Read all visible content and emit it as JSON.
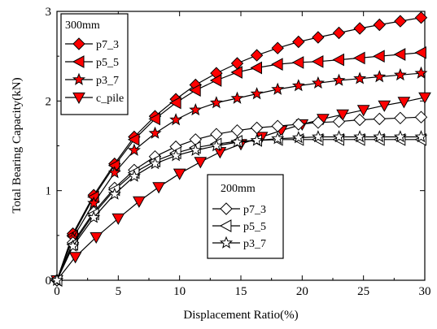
{
  "chart_data": {
    "type": "line",
    "xlabel": "Displacement Ratio(%)",
    "ylabel": "Total Bearing Capacity(kN)",
    "xlim": [
      0,
      30
    ],
    "ylim": [
      0,
      3
    ],
    "x_ticks": [
      0,
      5,
      10,
      15,
      20,
      25,
      30
    ],
    "y_ticks": [
      0,
      1,
      2,
      3
    ],
    "grid": false,
    "legend_groups": [
      {
        "title": "300mm",
        "placement": "top-left",
        "series": [
          "p7_3",
          "p5_5",
          "p3_7",
          "c_pile"
        ]
      },
      {
        "title": "200mm",
        "placement": "center-bottom",
        "series": [
          "p7_3 (200mm)",
          "p5_5 (200mm)",
          "p3_7 (200mm)"
        ]
      }
    ],
    "series": [
      {
        "name": "p7_3",
        "label": "p7_3",
        "marker": "diamond",
        "filled": true,
        "color": "#ff0000",
        "x": [
          0,
          1.3,
          3,
          4.7,
          6.3,
          8,
          9.7,
          11.3,
          13,
          14.7,
          16.3,
          18,
          19.7,
          21.3,
          23,
          24.7,
          26.3,
          28,
          29.7
        ],
        "y": [
          0,
          0.52,
          0.95,
          1.3,
          1.6,
          1.83,
          2.02,
          2.18,
          2.31,
          2.42,
          2.51,
          2.59,
          2.66,
          2.71,
          2.76,
          2.81,
          2.85,
          2.89,
          2.93
        ]
      },
      {
        "name": "p5_5",
        "label": "p5_5",
        "marker": "triangle-left",
        "filled": true,
        "color": "#ff0000",
        "x": [
          0,
          1.3,
          3,
          4.7,
          6.3,
          8,
          9.7,
          11.3,
          13,
          14.7,
          16.3,
          18,
          19.7,
          21.3,
          23,
          24.7,
          26.3,
          28,
          29.7
        ],
        "y": [
          0,
          0.5,
          0.93,
          1.28,
          1.57,
          1.8,
          1.98,
          2.12,
          2.23,
          2.32,
          2.37,
          2.41,
          2.43,
          2.44,
          2.46,
          2.48,
          2.5,
          2.52,
          2.54
        ]
      },
      {
        "name": "p3_7",
        "label": "p3_7",
        "marker": "star",
        "filled": true,
        "color": "#ff0000",
        "x": [
          0,
          1.3,
          3,
          4.7,
          6.3,
          8,
          9.7,
          11.3,
          13,
          14.7,
          16.3,
          18,
          19.7,
          21.3,
          23,
          24.7,
          26.3,
          28,
          29.7
        ],
        "y": [
          0,
          0.47,
          0.86,
          1.2,
          1.45,
          1.64,
          1.79,
          1.9,
          1.98,
          2.03,
          2.08,
          2.13,
          2.17,
          2.2,
          2.23,
          2.25,
          2.27,
          2.29,
          2.31
        ]
      },
      {
        "name": "c_pile",
        "label": "c_pile",
        "marker": "triangle-down",
        "filled": true,
        "color": "#ff0000",
        "x": [
          0,
          1.5,
          3.2,
          5,
          6.7,
          8.3,
          10,
          11.7,
          13.3,
          15,
          16.7,
          18.3,
          20,
          21.7,
          23.3,
          25,
          26.7,
          28.3,
          30
        ],
        "y": [
          0,
          0.26,
          0.48,
          0.69,
          0.88,
          1.04,
          1.19,
          1.32,
          1.43,
          1.52,
          1.6,
          1.67,
          1.74,
          1.8,
          1.85,
          1.9,
          1.95,
          1.99,
          2.04
        ]
      },
      {
        "name": "p7_3 (200mm)",
        "label": "p7_3",
        "marker": "diamond",
        "filled": false,
        "color": "#000000",
        "x": [
          0,
          1.3,
          3,
          4.7,
          6.3,
          8,
          9.7,
          11.3,
          13,
          14.7,
          16.3,
          18,
          19.7,
          21.3,
          23,
          24.7,
          26.3,
          28,
          29.7
        ],
        "y": [
          0,
          0.42,
          0.76,
          1.03,
          1.23,
          1.38,
          1.49,
          1.57,
          1.63,
          1.67,
          1.7,
          1.72,
          1.74,
          1.76,
          1.77,
          1.79,
          1.8,
          1.81,
          1.82
        ]
      },
      {
        "name": "p5_5 (200mm)",
        "label": "p5_5",
        "marker": "triangle-left",
        "filled": false,
        "color": "#000000",
        "x": [
          0,
          1.3,
          3,
          4.7,
          6.3,
          8,
          9.7,
          11.3,
          13,
          14.7,
          16.3,
          18,
          19.7,
          21.3,
          23,
          24.7,
          26.3,
          28,
          29.7
        ],
        "y": [
          0,
          0.4,
          0.74,
          1.01,
          1.2,
          1.33,
          1.42,
          1.48,
          1.52,
          1.55,
          1.56,
          1.57,
          1.57,
          1.57,
          1.57,
          1.57,
          1.57,
          1.57,
          1.57
        ]
      },
      {
        "name": "p3_7 (200mm)",
        "label": "p3_7",
        "marker": "star",
        "filled": false,
        "color": "#000000",
        "x": [
          0,
          1.3,
          3,
          4.7,
          6.3,
          8,
          9.7,
          11.3,
          13,
          14.7,
          16.3,
          18,
          19.7,
          21.3,
          23,
          24.7,
          26.3,
          28,
          29.7
        ],
        "y": [
          0,
          0.38,
          0.7,
          0.96,
          1.16,
          1.3,
          1.39,
          1.45,
          1.5,
          1.54,
          1.56,
          1.58,
          1.59,
          1.6,
          1.6,
          1.6,
          1.6,
          1.6,
          1.6
        ]
      }
    ]
  }
}
